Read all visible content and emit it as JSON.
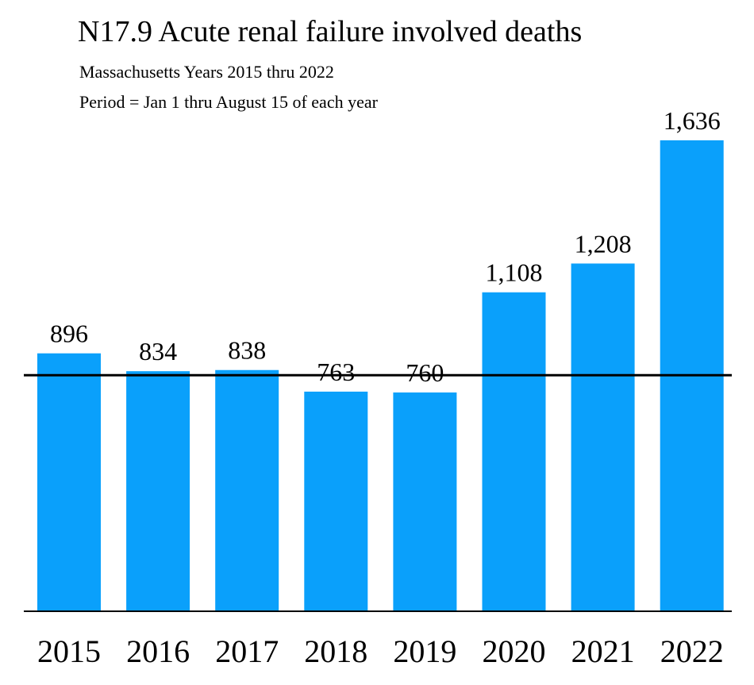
{
  "chart_data": {
    "type": "bar",
    "title": "N17.9 Acute renal failure involved deaths",
    "subtitle_lines": [
      "Massachusetts Years 2015 thru 2022",
      "Period = Jan 1 thru August 15 of each year"
    ],
    "categories": [
      "2015",
      "2016",
      "2017",
      "2018",
      "2019",
      "2020",
      "2021",
      "2022"
    ],
    "values": [
      896,
      834,
      838,
      763,
      760,
      1108,
      1208,
      1636
    ],
    "value_labels": [
      "896",
      "834",
      "838",
      "763",
      "760",
      "1,108",
      "1,208",
      "1,636"
    ],
    "reference_line": 820,
    "ylim": [
      0,
      1636
    ],
    "xlabel": "",
    "ylabel": "",
    "grid": false,
    "colors": {
      "bar": "#0aa0fb",
      "reference_line": "#000000",
      "axis": "#000000"
    }
  }
}
